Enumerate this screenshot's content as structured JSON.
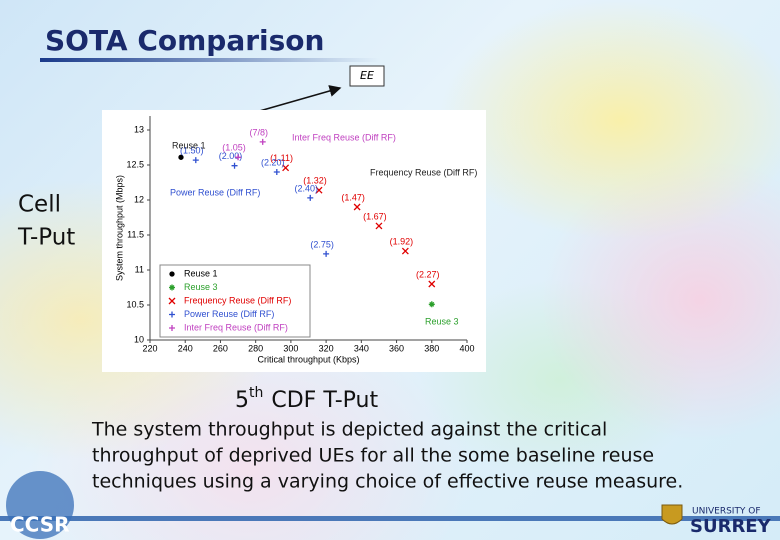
{
  "title": "SOTA Comparison",
  "callout": "EE",
  "side_labels": {
    "y": [
      "Cell",
      "T-Put"
    ],
    "x": {
      "base": "5",
      "sup": "th",
      "rest": "CDF T-Put"
    }
  },
  "caption": [
    "The system throughput is depicted against the critical",
    "throughput of deprived UEs for all the some baseline reuse",
    "techniques using a varying choice of effective reuse measure."
  ],
  "logos": {
    "left": "CCSR",
    "right": [
      "UNIVERSITY OF",
      "SURREY"
    ]
  },
  "chart_data": {
    "type": "scatter",
    "xlabel": "Critical throughput (Kbps)",
    "ylabel": "System throughput (Mbps)",
    "xlim": [
      220,
      400
    ],
    "xticks": [
      220,
      240,
      260,
      280,
      300,
      320,
      340,
      360,
      380,
      400
    ],
    "ylim": [
      10,
      13.2
    ],
    "yticks": [
      10,
      10.5,
      11,
      11.5,
      12,
      12.5,
      13
    ],
    "legend": "lower-left",
    "series": [
      {
        "name": "Reuse 1",
        "color": "#000000",
        "marker": "dot",
        "x": [
          237.6
        ],
        "values": [
          12.61
        ],
        "point_labels": [
          null
        ]
      },
      {
        "name": "Reuse 3",
        "color": "#2ca02c",
        "marker": "star",
        "x": [
          380
        ],
        "values": [
          10.51
        ],
        "point_labels": [
          null
        ]
      },
      {
        "name": "Frequency Reuse (Diff RF)",
        "color": "#e00000",
        "marker": "x",
        "x": [
          297,
          316,
          337.6,
          350,
          365,
          380
        ],
        "values": [
          12.46,
          12.14,
          11.9,
          11.63,
          11.27,
          10.8
        ],
        "point_labels": [
          "(1.11)",
          "(1.32)",
          "(1.47)",
          "(1.67)",
          "(1.92)",
          "(2.27)"
        ]
      },
      {
        "name": "Power Reuse (Diff RF)",
        "color": "#3050d0",
        "marker": "plus",
        "x": [
          246,
          268,
          292,
          311,
          320
        ],
        "values": [
          12.57,
          12.49,
          12.4,
          12.03,
          11.23
        ],
        "point_labels": [
          "(1.50)",
          "(2.00)",
          "(2.20)",
          "(2.40)",
          "(2.75)"
        ]
      },
      {
        "name": "Inter Freq Reuse (Diff RF)",
        "color": "#c040c0",
        "marker": "plus",
        "x": [
          284,
          270
        ],
        "values": [
          12.83,
          12.61
        ],
        "point_labels": [
          "(7/8)",
          "(1.05)"
        ]
      }
    ],
    "annotations": [
      "Inter Freq Reuse (Diff RF)",
      "Frequency Reuse (Diff RF)",
      "Power Reuse (Diff RF)",
      "Reuse 1",
      "Reuse 3"
    ]
  }
}
